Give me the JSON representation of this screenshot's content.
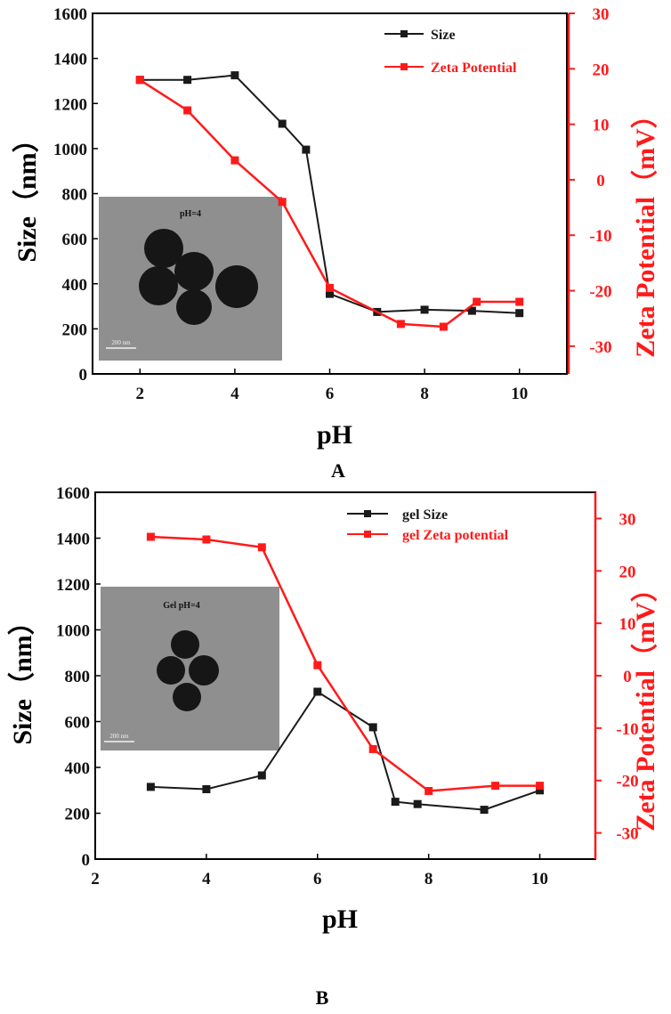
{
  "colors": {
    "size": "#1a1a1a",
    "zeta": "#ff1a1a"
  },
  "chart_data": [
    {
      "type": "line",
      "panel_label": "A",
      "xlabel": "pH",
      "ylabel": "Size（nm）",
      "ylabel_right": "Zeta Potential（mV）",
      "xlim": [
        1,
        11
      ],
      "ylim": [
        0,
        1600
      ],
      "ylim_right": [
        -35,
        30
      ],
      "x_ticks": [
        2,
        4,
        6,
        8,
        10
      ],
      "y_ticks": [
        0,
        200,
        400,
        600,
        800,
        1000,
        1200,
        1400,
        1600
      ],
      "y_right_ticks": [
        -30,
        -20,
        -10,
        0,
        10,
        20,
        30
      ],
      "inset_label": "pH=4",
      "inset_scale": "200 nm",
      "legend_position": "top-right",
      "series": [
        {
          "name": "Size",
          "axis": "left",
          "x": [
            2,
            3,
            4,
            5,
            5.5,
            6,
            7,
            8,
            9,
            10
          ],
          "values": [
            1305,
            1305,
            1325,
            1110,
            995,
            355,
            275,
            285,
            280,
            270
          ]
        },
        {
          "name": "Zeta Potential",
          "axis": "right",
          "x": [
            2,
            3,
            4,
            5,
            6,
            7.5,
            8.4,
            9.1,
            10
          ],
          "values": [
            18,
            12.5,
            3.5,
            -4,
            -19.5,
            -26,
            -26.5,
            -22,
            -22
          ]
        }
      ]
    },
    {
      "type": "line",
      "panel_label": "B",
      "xlabel": "pH",
      "ylabel": "Size（nm）",
      "ylabel_right": "Zeta Potential（mV）",
      "xlim": [
        2,
        11
      ],
      "ylim": [
        0,
        1600
      ],
      "ylim_right": [
        -35,
        35
      ],
      "x_ticks": [
        2,
        4,
        6,
        8,
        10
      ],
      "y_ticks": [
        0,
        200,
        400,
        600,
        800,
        1000,
        1200,
        1400,
        1600
      ],
      "y_right_ticks": [
        -30,
        -20,
        -10,
        0,
        10,
        20,
        30
      ],
      "inset_label": "Gel pH=4",
      "inset_scale": "200 nm",
      "legend_position": "top-right",
      "series": [
        {
          "name": "gel Size",
          "axis": "left",
          "x": [
            3,
            4,
            5,
            6,
            7,
            7.4,
            7.8,
            9,
            10
          ],
          "values": [
            315,
            305,
            365,
            730,
            575,
            250,
            240,
            215,
            300
          ]
        },
        {
          "name": "gel Zeta potential",
          "axis": "right",
          "x": [
            3,
            4,
            5,
            6,
            7,
            8,
            9.2,
            10
          ],
          "values": [
            26.5,
            26,
            24.5,
            2,
            -14,
            -22,
            -21,
            -21
          ]
        }
      ]
    }
  ]
}
